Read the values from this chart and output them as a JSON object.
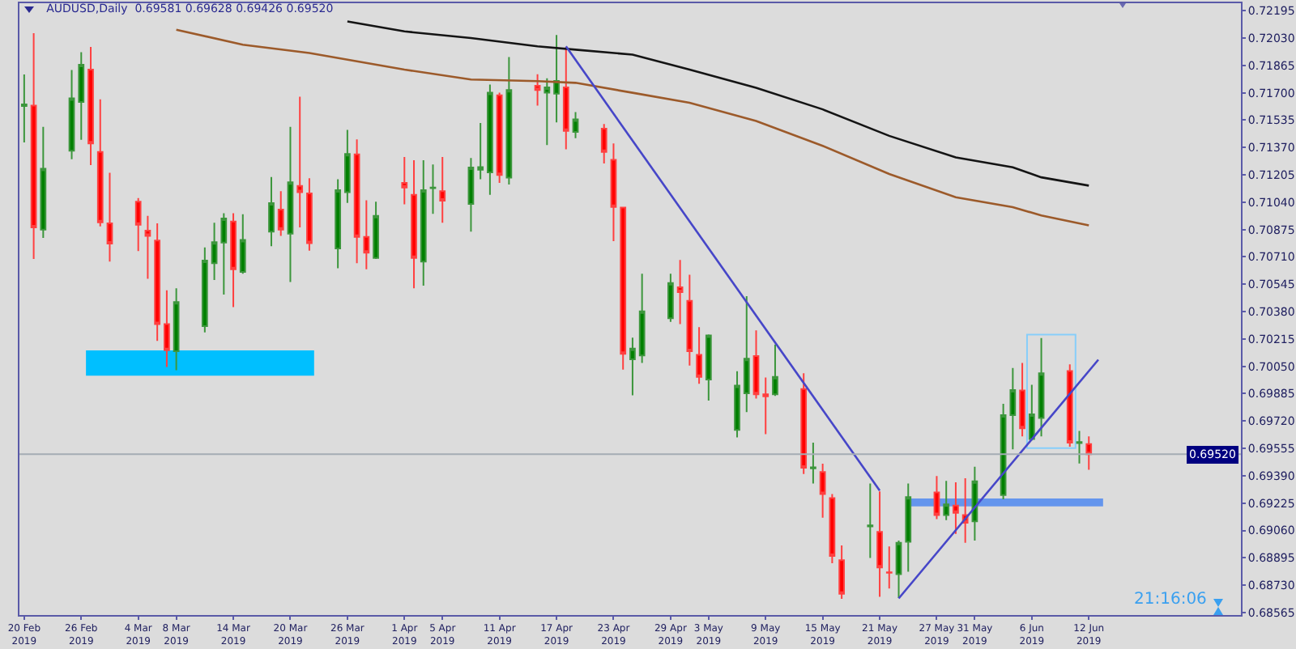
{
  "chart_data": {
    "type": "candlestick",
    "title": "AUDUSD,Daily  0.69581 0.69628 0.69426 0.69520",
    "x": [
      "2019-02-20",
      "2019-02-21",
      "2019-02-22",
      "2019-02-25",
      "2019-02-26",
      "2019-02-27",
      "2019-02-28",
      "2019-03-01",
      "2019-03-04",
      "2019-03-05",
      "2019-03-06",
      "2019-03-07",
      "2019-03-08",
      "2019-03-11",
      "2019-03-12",
      "2019-03-13",
      "2019-03-14",
      "2019-03-15",
      "2019-03-18",
      "2019-03-19",
      "2019-03-20",
      "2019-03-21",
      "2019-03-22",
      "2019-03-25",
      "2019-03-26",
      "2019-03-27",
      "2019-03-28",
      "2019-03-29",
      "2019-04-01",
      "2019-04-02",
      "2019-04-03",
      "2019-04-04",
      "2019-04-05",
      "2019-04-08",
      "2019-04-09",
      "2019-04-10",
      "2019-04-11",
      "2019-04-12",
      "2019-04-15",
      "2019-04-16",
      "2019-04-17",
      "2019-04-18",
      "2019-04-19",
      "2019-04-22",
      "2019-04-23",
      "2019-04-24",
      "2019-04-25",
      "2019-04-26",
      "2019-04-29",
      "2019-04-30",
      "2019-05-01",
      "2019-05-02",
      "2019-05-03",
      "2019-05-06",
      "2019-05-07",
      "2019-05-08",
      "2019-05-09",
      "2019-05-10",
      "2019-05-13",
      "2019-05-14",
      "2019-05-15",
      "2019-05-16",
      "2019-05-17",
      "2019-05-20",
      "2019-05-21",
      "2019-05-22",
      "2019-05-23",
      "2019-05-24",
      "2019-05-27",
      "2019-05-28",
      "2019-05-29",
      "2019-05-30",
      "2019-05-31",
      "2019-06-03",
      "2019-06-04",
      "2019-06-05",
      "2019-06-06",
      "2019-06-07",
      "2019-06-10",
      "2019-06-11",
      "2019-06-12"
    ],
    "ohlc": [
      [
        0.7162,
        0.7181,
        0.714,
        0.7163
      ],
      [
        0.71622,
        0.72059,
        0.70698,
        0.70888
      ],
      [
        0.70875,
        0.71495,
        0.70824,
        0.71242
      ],
      [
        0.7135,
        0.71837,
        0.71299,
        0.71666
      ],
      [
        0.71644,
        0.71945,
        0.71416,
        0.71869
      ],
      [
        0.7184,
        0.71976,
        0.71264,
        0.71394
      ],
      [
        0.71343,
        0.7166,
        0.70894,
        0.70919
      ],
      [
        0.70913,
        0.71217,
        0.70682,
        0.7079
      ],
      [
        0.71043,
        0.71065,
        0.70745,
        0.70904
      ],
      [
        0.70869,
        0.70957,
        0.70578,
        0.70837
      ],
      [
        0.70809,
        0.70913,
        0.70204,
        0.70305
      ],
      [
        0.70305,
        0.70508,
        0.70046,
        0.70147
      ],
      [
        0.70141,
        0.70521,
        0.70027,
        0.70438
      ],
      [
        0.70293,
        0.70767,
        0.70255,
        0.70688
      ],
      [
        0.70672,
        0.70916,
        0.70571,
        0.70799
      ],
      [
        0.70796,
        0.70973,
        0.70483,
        0.70942
      ],
      [
        0.70923,
        0.70973,
        0.70407,
        0.70635
      ],
      [
        0.70619,
        0.70967,
        0.70609,
        0.70812
      ],
      [
        0.70862,
        0.71192,
        0.70774,
        0.71034
      ],
      [
        0.70995,
        0.71106,
        0.70837,
        0.70875
      ],
      [
        0.7085,
        0.71495,
        0.70559,
        0.7116
      ],
      [
        0.71138,
        0.71676,
        0.70888,
        0.711
      ],
      [
        0.71093,
        0.71185,
        0.70748,
        0.70793
      ],
      [
        0.70761,
        0.71179,
        0.70641,
        0.71112
      ],
      [
        0.711,
        0.71476,
        0.71036,
        0.71331
      ],
      [
        0.71328,
        0.71419,
        0.70672,
        0.70831
      ],
      [
        0.70831,
        0.71052,
        0.70635,
        0.70736
      ],
      [
        0.70704,
        0.71043,
        0.70698,
        0.70957
      ],
      [
        0.71157,
        0.71312,
        0.71027,
        0.71128
      ],
      [
        0.71084,
        0.71293,
        0.70521,
        0.70704
      ],
      [
        0.70682,
        0.71293,
        0.70537,
        0.71112
      ],
      [
        0.71125,
        0.71268,
        0.7097,
        0.71128
      ],
      [
        0.71106,
        0.71312,
        0.70916,
        0.71049
      ],
      [
        0.7103,
        0.71306,
        0.70862,
        0.71249
      ],
      [
        0.71236,
        0.71518,
        0.71179,
        0.71252
      ],
      [
        0.7122,
        0.71749,
        0.71084,
        0.71701
      ],
      [
        0.71685,
        0.71701,
        0.71157,
        0.71204
      ],
      [
        0.71188,
        0.71916,
        0.71147,
        0.71717
      ],
      [
        0.71742,
        0.71812,
        0.71622,
        0.71717
      ],
      [
        0.71701,
        0.71787,
        0.71385,
        0.71733
      ],
      [
        0.71695,
        0.72049,
        0.71521,
        0.71771
      ],
      [
        0.71733,
        0.71976,
        0.71359,
        0.7147
      ],
      [
        0.71464,
        0.71584,
        0.71426,
        0.7154
      ],
      [
        0.71483,
        0.71511,
        0.71274,
        0.71343
      ],
      [
        0.71296,
        0.71394,
        0.70805,
        0.71011
      ],
      [
        0.71008,
        0.71011,
        0.7003,
        0.70125
      ],
      [
        0.70093,
        0.70223,
        0.69875,
        0.70157
      ],
      [
        0.70115,
        0.70609,
        0.70071,
        0.70381
      ],
      [
        0.7034,
        0.70609,
        0.70318,
        0.70552
      ],
      [
        0.70527,
        0.70692,
        0.70305,
        0.70498
      ],
      [
        0.70445,
        0.70603,
        0.70055,
        0.70141
      ],
      [
        0.70119,
        0.70286,
        0.69945,
        0.69986
      ],
      [
        0.6997,
        0.70242,
        0.69843,
        0.70236
      ],
      [
        0.69666,
        0.7002,
        0.69622,
        0.69934
      ],
      [
        0.69888,
        0.70473,
        0.69774,
        0.70096
      ],
      [
        0.70112,
        0.70267,
        0.69856,
        0.69881
      ],
      [
        0.69881,
        0.69983,
        0.69641,
        0.69869
      ],
      [
        0.69881,
        0.70182,
        0.69872,
        0.69986
      ],
      [
        0.69913,
        0.70008,
        0.694,
        0.69438
      ],
      [
        0.69435,
        0.6959,
        0.69343,
        0.69441
      ],
      [
        0.69413,
        0.69463,
        0.69137,
        0.6928
      ],
      [
        0.69255,
        0.6928,
        0.68862,
        0.68906
      ],
      [
        0.68881,
        0.6897,
        0.68647,
        0.68678
      ],
      [
        0.69084,
        0.69343,
        0.68894,
        0.6909
      ],
      [
        0.69052,
        0.69296,
        0.6866,
        0.68837
      ],
      [
        0.68808,
        0.68964,
        0.6871,
        0.68805
      ],
      [
        0.68796,
        0.68999,
        0.68653,
        0.68986
      ],
      [
        0.68992,
        0.69343,
        0.68811,
        0.69261
      ],
      [
        0.69289,
        0.69388,
        0.69128,
        0.69153
      ],
      [
        0.69153,
        0.69359,
        0.69122,
        0.69217
      ],
      [
        0.6921,
        0.6935,
        0.69039,
        0.69166
      ],
      [
        0.69153,
        0.69375,
        0.68986,
        0.69106
      ],
      [
        0.69115,
        0.69444,
        0.68999,
        0.69356
      ],
      [
        0.69274,
        0.69824,
        0.69248,
        0.69755
      ],
      [
        0.69755,
        0.7004,
        0.69549,
        0.69907
      ],
      [
        0.69904,
        0.70071,
        0.69628,
        0.69676
      ],
      [
        0.69612,
        0.69938,
        0.69603,
        0.69761
      ],
      [
        0.69739,
        0.7022,
        0.69628,
        0.70008
      ],
      [
        0.70021,
        0.70062,
        0.69565,
        0.6959
      ],
      [
        0.69587,
        0.6966,
        0.69464,
        0.69593
      ],
      [
        0.69581,
        0.69628,
        0.69426,
        0.6952
      ]
    ],
    "series": [
      {
        "type": "line",
        "color": "#141414",
        "x": [
          "2019-03-26",
          "2019-04-01",
          "2019-04-08",
          "2019-04-15",
          "2019-04-19",
          "2019-04-25",
          "2019-05-01",
          "2019-05-08",
          "2019-05-15",
          "2019-05-22",
          "2019-05-29",
          "2019-06-04",
          "2019-06-07",
          "2019-06-12"
        ],
        "values": [
          0.7213,
          0.7207,
          0.7203,
          0.7198,
          0.7196,
          0.7193,
          0.7184,
          0.7173,
          0.716,
          0.7144,
          0.7131,
          0.7125,
          0.7119,
          0.7114
        ]
      },
      {
        "type": "line",
        "color": "#9c5a2a",
        "x": [
          "2019-03-08",
          "2019-03-15",
          "2019-03-22",
          "2019-04-01",
          "2019-04-08",
          "2019-04-15",
          "2019-04-19",
          "2019-04-25",
          "2019-05-01",
          "2019-05-08",
          "2019-05-15",
          "2019-05-22",
          "2019-05-29",
          "2019-06-04",
          "2019-06-07",
          "2019-06-12"
        ],
        "values": [
          0.7208,
          0.7199,
          0.7194,
          0.7184,
          0.7178,
          0.7177,
          0.7176,
          0.717,
          0.7164,
          0.7153,
          0.7138,
          0.7121,
          0.7107,
          0.7101,
          0.7096,
          0.709
        ]
      },
      {
        "type": "line",
        "color": "#4646c8",
        "x": [
          "2019-04-18",
          "2019-05-21"
        ],
        "values": [
          0.7198,
          0.693
        ]
      },
      {
        "type": "line",
        "color": "#4646c8",
        "x": [
          "2019-05-23",
          "2019-06-13"
        ],
        "values": [
          0.6865,
          0.7009
        ]
      }
    ],
    "xlim": [
      "2019-02-19T12:00",
      "2019-06-28"
    ],
    "xticks": [
      {
        "value": "2019-02-20",
        "label": "20 Feb 2019"
      },
      {
        "value": "2019-02-26",
        "label": "26 Feb 2019"
      },
      {
        "value": "2019-03-04",
        "label": "4 Mar 2019"
      },
      {
        "value": "2019-03-08",
        "label": "8 Mar 2019"
      },
      {
        "value": "2019-03-14",
        "label": "14 Mar 2019"
      },
      {
        "value": "2019-03-20",
        "label": "20 Mar 2019"
      },
      {
        "value": "2019-03-26",
        "label": "26 Mar 2019"
      },
      {
        "value": "2019-04-01",
        "label": "1 Apr 2019"
      },
      {
        "value": "2019-04-05",
        "label": "5 Apr 2019"
      },
      {
        "value": "2019-04-11",
        "label": "11 Apr 2019"
      },
      {
        "value": "2019-04-17",
        "label": "17 Apr 2019"
      },
      {
        "value": "2019-04-23",
        "label": "23 Apr 2019"
      },
      {
        "value": "2019-04-29",
        "label": "29 Apr 2019"
      },
      {
        "value": "2019-05-03",
        "label": "3 May 2019"
      },
      {
        "value": "2019-05-09",
        "label": "9 May 2019"
      },
      {
        "value": "2019-05-15",
        "label": "15 May 2019"
      },
      {
        "value": "2019-05-21",
        "label": "21 May 2019"
      },
      {
        "value": "2019-05-27",
        "label": "27 May 2019"
      },
      {
        "value": "2019-05-31",
        "label": "31 May 2019"
      },
      {
        "value": "2019-06-06",
        "label": "6 Jun 2019"
      },
      {
        "value": "2019-06-12",
        "label": "12 Jun 2019"
      }
    ],
    "ylim": [
      0.6855,
      0.7224
    ],
    "yticks": [
      0.72195,
      {
        "value": 0.7203,
        "label": "0.72030"
      },
      0.71865,
      {
        "value": 0.717,
        "label": "0.71700"
      },
      0.71535,
      {
        "value": 0.7137,
        "label": "0.71370"
      },
      0.71205,
      {
        "value": 0.7104,
        "label": "0.71040"
      },
      0.70875,
      {
        "value": 0.7071,
        "label": "0.70710"
      },
      0.70545,
      {
        "value": 0.7038,
        "label": "0.70380"
      },
      0.70215,
      {
        "value": 0.7005,
        "label": "0.70050"
      },
      0.69885,
      {
        "value": 0.6972,
        "label": "0.69720"
      },
      0.69555,
      {
        "value": 0.6939,
        "label": "0.69390"
      },
      0.69225,
      {
        "value": 0.6906,
        "label": "0.69060"
      },
      0.68895,
      {
        "value": 0.6873,
        "label": "0.68730"
      },
      0.68565
    ],
    "ref_lines": [
      {
        "axis": "y",
        "value": 0.6952,
        "label": "0.69520",
        "color": "#a4acb4"
      }
    ],
    "annotations": [
      "21:16:06"
    ]
  }
}
